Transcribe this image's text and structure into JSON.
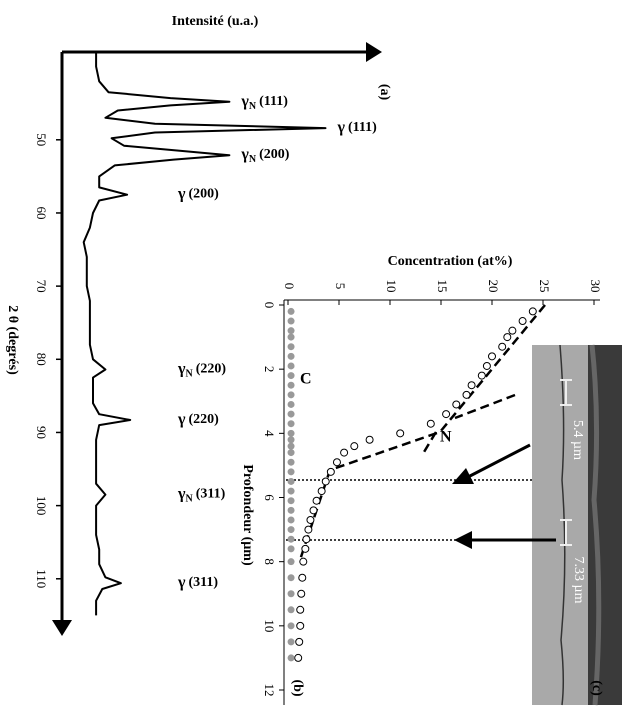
{
  "chart_data": [
    {
      "type": "line",
      "panel_label": "(a)",
      "y_axis_label": "Intensité (u.a.)",
      "x_axis_label": "2 θ (degrés)",
      "xlim": [
        38,
        117
      ],
      "ylim": [
        0,
        100
      ],
      "xticks": [
        50,
        60,
        70,
        80,
        90,
        100,
        110
      ],
      "color": "#000000",
      "x": [
        38,
        40,
        42,
        43.5,
        44.3,
        44.8,
        45.3,
        46,
        47,
        47.8,
        48.4,
        49,
        49.8,
        50.8,
        51.5,
        52.1,
        52.7,
        53.5,
        55,
        56.5,
        57.5,
        58.3,
        60,
        62,
        64,
        66,
        68,
        70,
        72,
        74,
        76,
        78,
        80,
        81.4,
        82.5,
        84,
        86,
        87.5,
        88.3,
        89,
        91,
        93,
        95,
        97,
        98.5,
        100,
        102,
        104,
        106,
        108,
        109.8,
        110.6,
        111.4,
        113,
        115
      ],
      "values": [
        11,
        11,
        12,
        15,
        35,
        54,
        35,
        18,
        14,
        30,
        85,
        30,
        16,
        20,
        38,
        54,
        36,
        17,
        12,
        12,
        21,
        12,
        10,
        9,
        7,
        8,
        8,
        8,
        9,
        9,
        9,
        9,
        10,
        14,
        10,
        10,
        10,
        12,
        22,
        12,
        11,
        11,
        11,
        11,
        14,
        11,
        11,
        11,
        12,
        12,
        14,
        19,
        13,
        11,
        11
      ],
      "peaks": [
        {
          "symbol": "γ",
          "subscript": "N",
          "index": "(111)",
          "x": 44.8
        },
        {
          "symbol": "γ",
          "index": "(111)",
          "x": 48.4
        },
        {
          "symbol": "γ",
          "subscript": "N",
          "index": "(200)",
          "x": 52.1
        },
        {
          "symbol": "γ",
          "index": "(200)",
          "x": 57.5
        },
        {
          "symbol": "γ",
          "subscript": "N",
          "index": "(220)",
          "x": 81.4
        },
        {
          "symbol": "γ",
          "index": "(220)",
          "x": 88.3
        },
        {
          "symbol": "γ",
          "subscript": "N",
          "index": "(311)",
          "x": 98.5
        },
        {
          "symbol": "γ",
          "index": "(311)",
          "x": 110.6
        }
      ]
    },
    {
      "type": "scatter",
      "panel_label": "(b)",
      "x_axis_label": "Profondeur (µm)",
      "y_axis_label": "Concentration (at%)",
      "xlim": [
        0,
        12
      ],
      "ylim": [
        0,
        30
      ],
      "xticks": [
        0,
        2,
        4,
        6,
        8,
        10,
        12
      ],
      "yticks": [
        0,
        5,
        10,
        15,
        20,
        25,
        30
      ],
      "x": [
        0.2,
        0.5,
        0.8,
        1,
        1.3,
        1.6,
        1.9,
        2.2,
        2.5,
        2.8,
        3.1,
        3.4,
        3.7,
        4,
        4.2,
        4.4,
        4.6,
        4.9,
        5.2,
        5.5,
        5.8,
        6.1,
        6.4,
        6.7,
        7,
        7.3,
        7.6,
        8,
        8.5,
        9,
        9.5,
        10,
        10.5,
        11
      ],
      "series": [
        {
          "name": "N",
          "color": "#ffffff",
          "values": [
            24,
            23,
            22,
            21.5,
            21,
            20,
            19.5,
            19,
            18,
            17.5,
            16.5,
            15.5,
            14,
            11,
            8,
            6.5,
            5.5,
            4.8,
            4.2,
            3.7,
            3.3,
            2.8,
            2.5,
            2.2,
            2,
            1.8,
            1.7,
            1.5,
            1.4,
            1.3,
            1.2,
            1.2,
            1.1,
            1.0
          ]
        },
        {
          "name": "C",
          "color": "#999999",
          "values": [
            0.3,
            0.3,
            0.3,
            0.3,
            0.3,
            0.3,
            0.3,
            0.3,
            0.3,
            0.3,
            0.3,
            0.3,
            0.3,
            0.3,
            0.3,
            0.3,
            0.3,
            0.3,
            0.3,
            0.3,
            0.3,
            0.3,
            0.3,
            0.3,
            0.3,
            0.3,
            0.3,
            0.3,
            0.3,
            0.3,
            0.3,
            0.3,
            0.3,
            0.3
          ]
        }
      ]
    }
  ],
  "image_panel": {
    "label": "(c)",
    "scale_labels": [
      "5.4 µm",
      "7.33 µm"
    ]
  }
}
